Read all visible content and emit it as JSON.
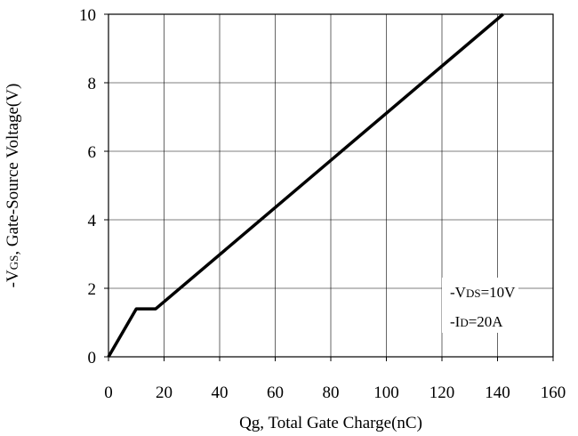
{
  "chart_data": {
    "type": "line",
    "xlabel": "Qg, Total Gate Charge(nC)",
    "ylabel": "-VGS, Gate-Source Voltage(V)",
    "ylabel_parts": {
      "prefix": "-V",
      "sub": "GS",
      "suffix": ", Gate-Source Voltage(V)"
    },
    "xlim": [
      0,
      160
    ],
    "ylim": [
      0,
      10
    ],
    "xticks": [
      0,
      20,
      40,
      60,
      80,
      100,
      120,
      140,
      160
    ],
    "yticks": [
      0,
      2,
      4,
      6,
      8,
      10
    ],
    "grid": true,
    "series": [
      {
        "x": [
          0,
          10,
          17,
          142
        ],
        "y": [
          0,
          1.4,
          1.4,
          10
        ]
      }
    ],
    "annotations": [
      {
        "prefix": "-V",
        "sub": "DS",
        "suffix": "=10V"
      },
      {
        "prefix": "-I",
        "sub": "D",
        "suffix": "=20A"
      }
    ]
  }
}
